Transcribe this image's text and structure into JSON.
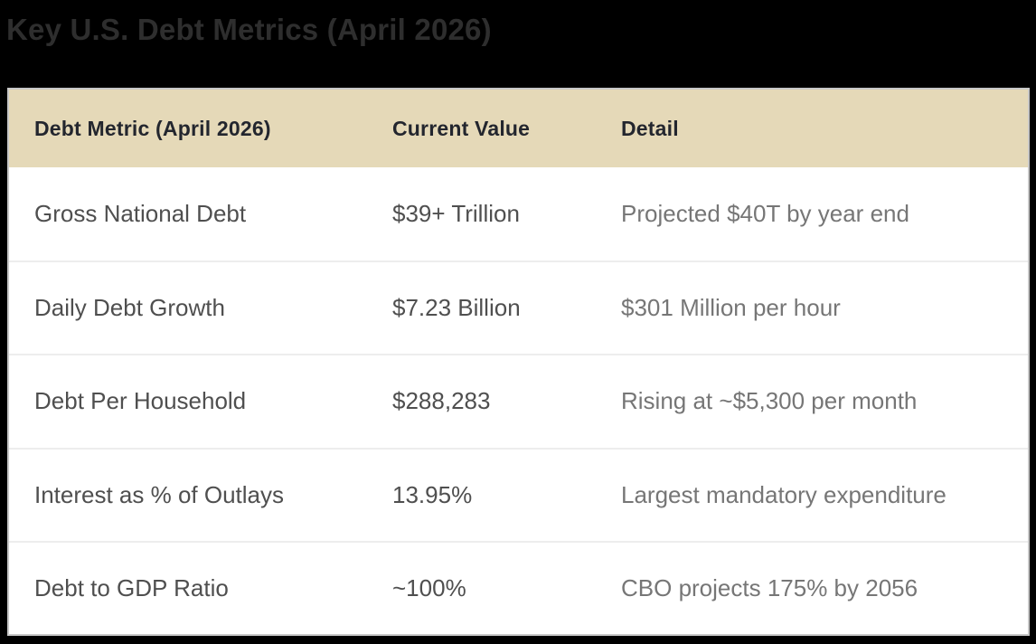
{
  "page": {
    "title": "Key U.S. Debt Metrics (April 2026)"
  },
  "chart_data": {
    "type": "table",
    "title": "Key U.S. Debt Metrics (April 2026)",
    "columns": [
      "Debt Metric (April 2026)",
      "Current Value",
      "Detail"
    ],
    "rows": [
      [
        "Gross National Debt",
        "$39+ Trillion",
        "Projected $40T by year end"
      ],
      [
        "Daily Debt Growth",
        "$7.23 Billion",
        "$301 Million per hour"
      ],
      [
        "Debt Per Household",
        "$288,283",
        "Rising at ~$5,300 per month"
      ],
      [
        "Interest as % of Outlays",
        "13.95%",
        "Largest mandatory expenditure"
      ],
      [
        "Debt to GDP Ratio",
        "~100%",
        "CBO projects 175% by 2056"
      ]
    ],
    "layout_hints": {
      "header_row": true,
      "row_dividers": true,
      "legend_position": "none",
      "grid": "horizontal-only"
    }
  },
  "colors": {
    "background": "#000000",
    "title_text": "#2e2e2e",
    "table_background": "#ffffff",
    "table_border": "#c8c8c8",
    "header_background": "#e5d9b8",
    "header_text": "#23262e",
    "metric_column_text": "#4f4f4f",
    "value_column_text": "#4f4f4f",
    "detail_column_text": "#767676",
    "row_divider": "#ededed"
  }
}
